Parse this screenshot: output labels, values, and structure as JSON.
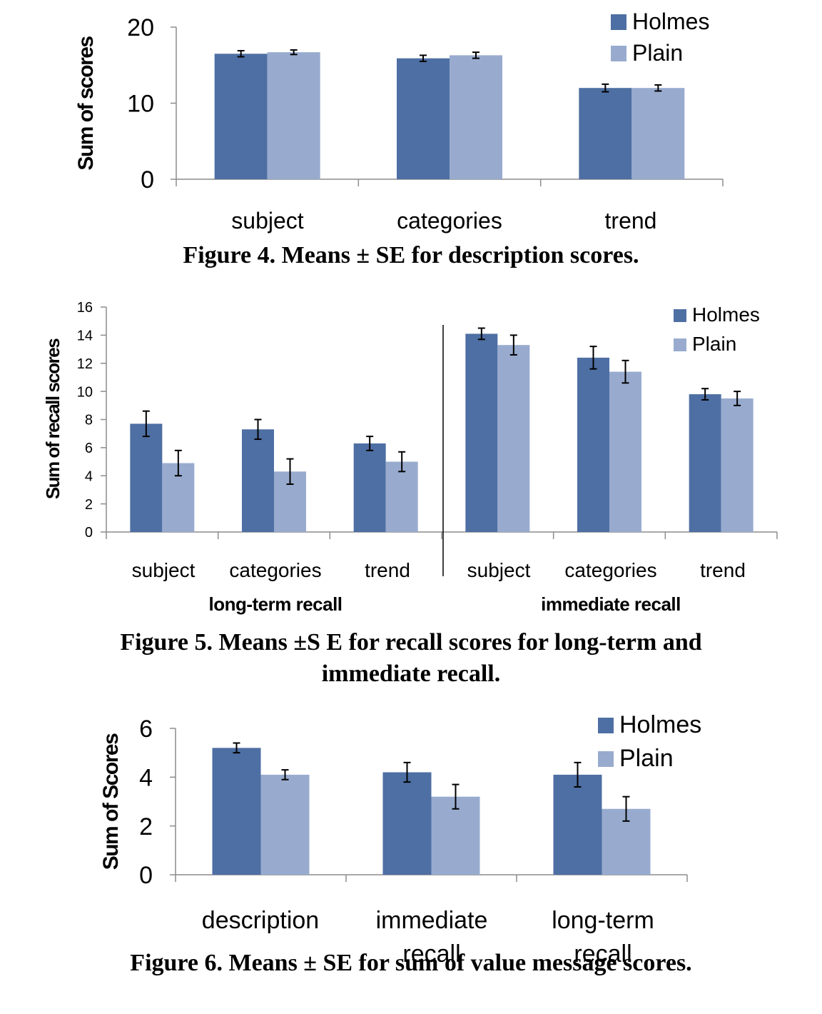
{
  "colors": {
    "holmes": "#4e6fa3",
    "plain": "#98abcf",
    "axis": "#8c8c8c",
    "errorbar": "#000000"
  },
  "captions": {
    "fig4": "Figure 4. Means ± SE for description scores.",
    "fig5_line1": "Figure 5. Means ±S E for recall scores for long-term and",
    "fig5_line2": "immediate recall.",
    "fig6": "Figure 6. Means ± SE for sum of value message scores."
  },
  "chart_data": [
    {
      "type": "bar",
      "ylabel": "Sum of scores",
      "ylim": [
        0,
        20
      ],
      "yticks": [
        "0",
        "10",
        "20"
      ],
      "categories": [
        "subject",
        "categories",
        "trend"
      ],
      "legend": "top-right",
      "series": [
        {
          "name": "Holmes",
          "values": [
            16.5,
            15.9,
            12.0
          ],
          "errors": [
            0.4,
            0.4,
            0.5
          ]
        },
        {
          "name": "Plain",
          "values": [
            16.7,
            16.3,
            12.0
          ],
          "errors": [
            0.3,
            0.4,
            0.4
          ]
        }
      ]
    },
    {
      "type": "bar",
      "ylabel": "Sum of recall scores",
      "ylim": [
        0,
        16
      ],
      "yticks": [
        "0",
        "2",
        "4",
        "6",
        "8",
        "10",
        "12",
        "14",
        "16"
      ],
      "categories": [
        "subject",
        "categories",
        "trend",
        "subject",
        "categories",
        "trend"
      ],
      "groups": [
        {
          "label": "long-term recall",
          "span": [
            0,
            2
          ]
        },
        {
          "label": "immediate recall",
          "span": [
            3,
            5
          ]
        }
      ],
      "legend": "top-right",
      "series": [
        {
          "name": "Holmes",
          "values": [
            7.7,
            7.3,
            6.3,
            14.1,
            12.4,
            9.8
          ],
          "errors": [
            0.9,
            0.7,
            0.5,
            0.4,
            0.8,
            0.4
          ]
        },
        {
          "name": "Plain",
          "values": [
            4.9,
            4.3,
            5.0,
            13.3,
            11.4,
            9.5
          ],
          "errors": [
            0.9,
            0.9,
            0.7,
            0.7,
            0.8,
            0.5
          ]
        }
      ]
    },
    {
      "type": "bar",
      "ylabel": "Sum of Scores",
      "ylim": [
        0,
        6
      ],
      "yticks": [
        "0",
        "2",
        "4",
        "6"
      ],
      "categories": [
        [
          "description"
        ],
        [
          "immediate",
          "recall"
        ],
        [
          "long-term",
          "recall"
        ]
      ],
      "legend": "top-right",
      "series": [
        {
          "name": "Holmes",
          "values": [
            5.2,
            4.2,
            4.1
          ],
          "errors": [
            0.2,
            0.4,
            0.5
          ]
        },
        {
          "name": "Plain",
          "values": [
            4.1,
            3.2,
            2.7
          ],
          "errors": [
            0.2,
            0.5,
            0.5
          ]
        }
      ]
    }
  ]
}
